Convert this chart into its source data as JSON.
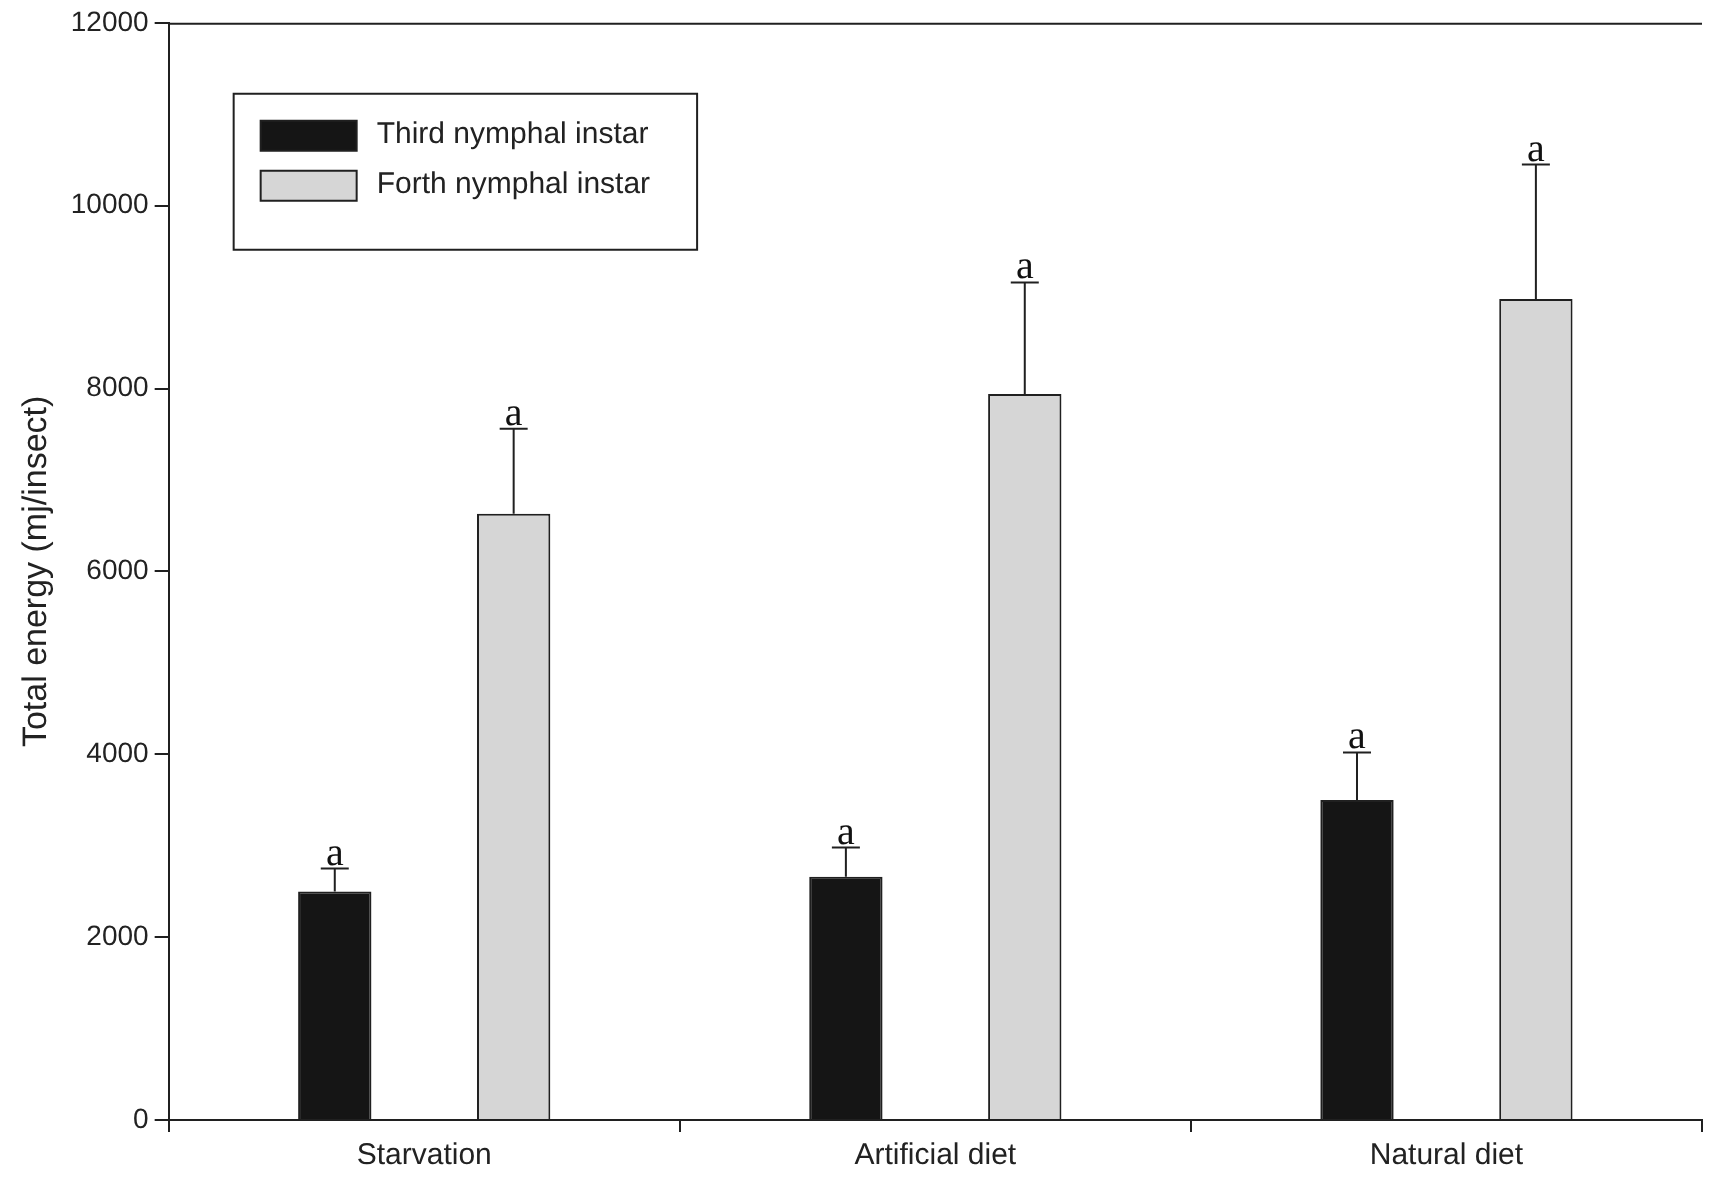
{
  "chart_data": {
    "type": "bar",
    "categories": [
      "Starvation",
      "Artificial diet",
      "Natural diet"
    ],
    "ylabel": "Total energy (mj/insect)",
    "ylim": [
      0,
      12000
    ],
    "yticks": [
      0,
      2000,
      4000,
      6000,
      8000,
      10000,
      12000
    ],
    "grid": false,
    "legend": "top left",
    "series": [
      {
        "name": "Third nymphal instar",
        "color": "#151515",
        "values": [
          2500,
          2660,
          3500
        ],
        "errors": [
          250,
          320,
          520
        ]
      },
      {
        "name": "Forth nymphal instar",
        "color": "#d6d6d6",
        "values": [
          6630,
          7940,
          8980
        ],
        "errors": [
          930,
          1220,
          1470
        ]
      }
    ],
    "annotations": [
      "a",
      "a",
      "a",
      "a",
      "a",
      "a"
    ]
  }
}
